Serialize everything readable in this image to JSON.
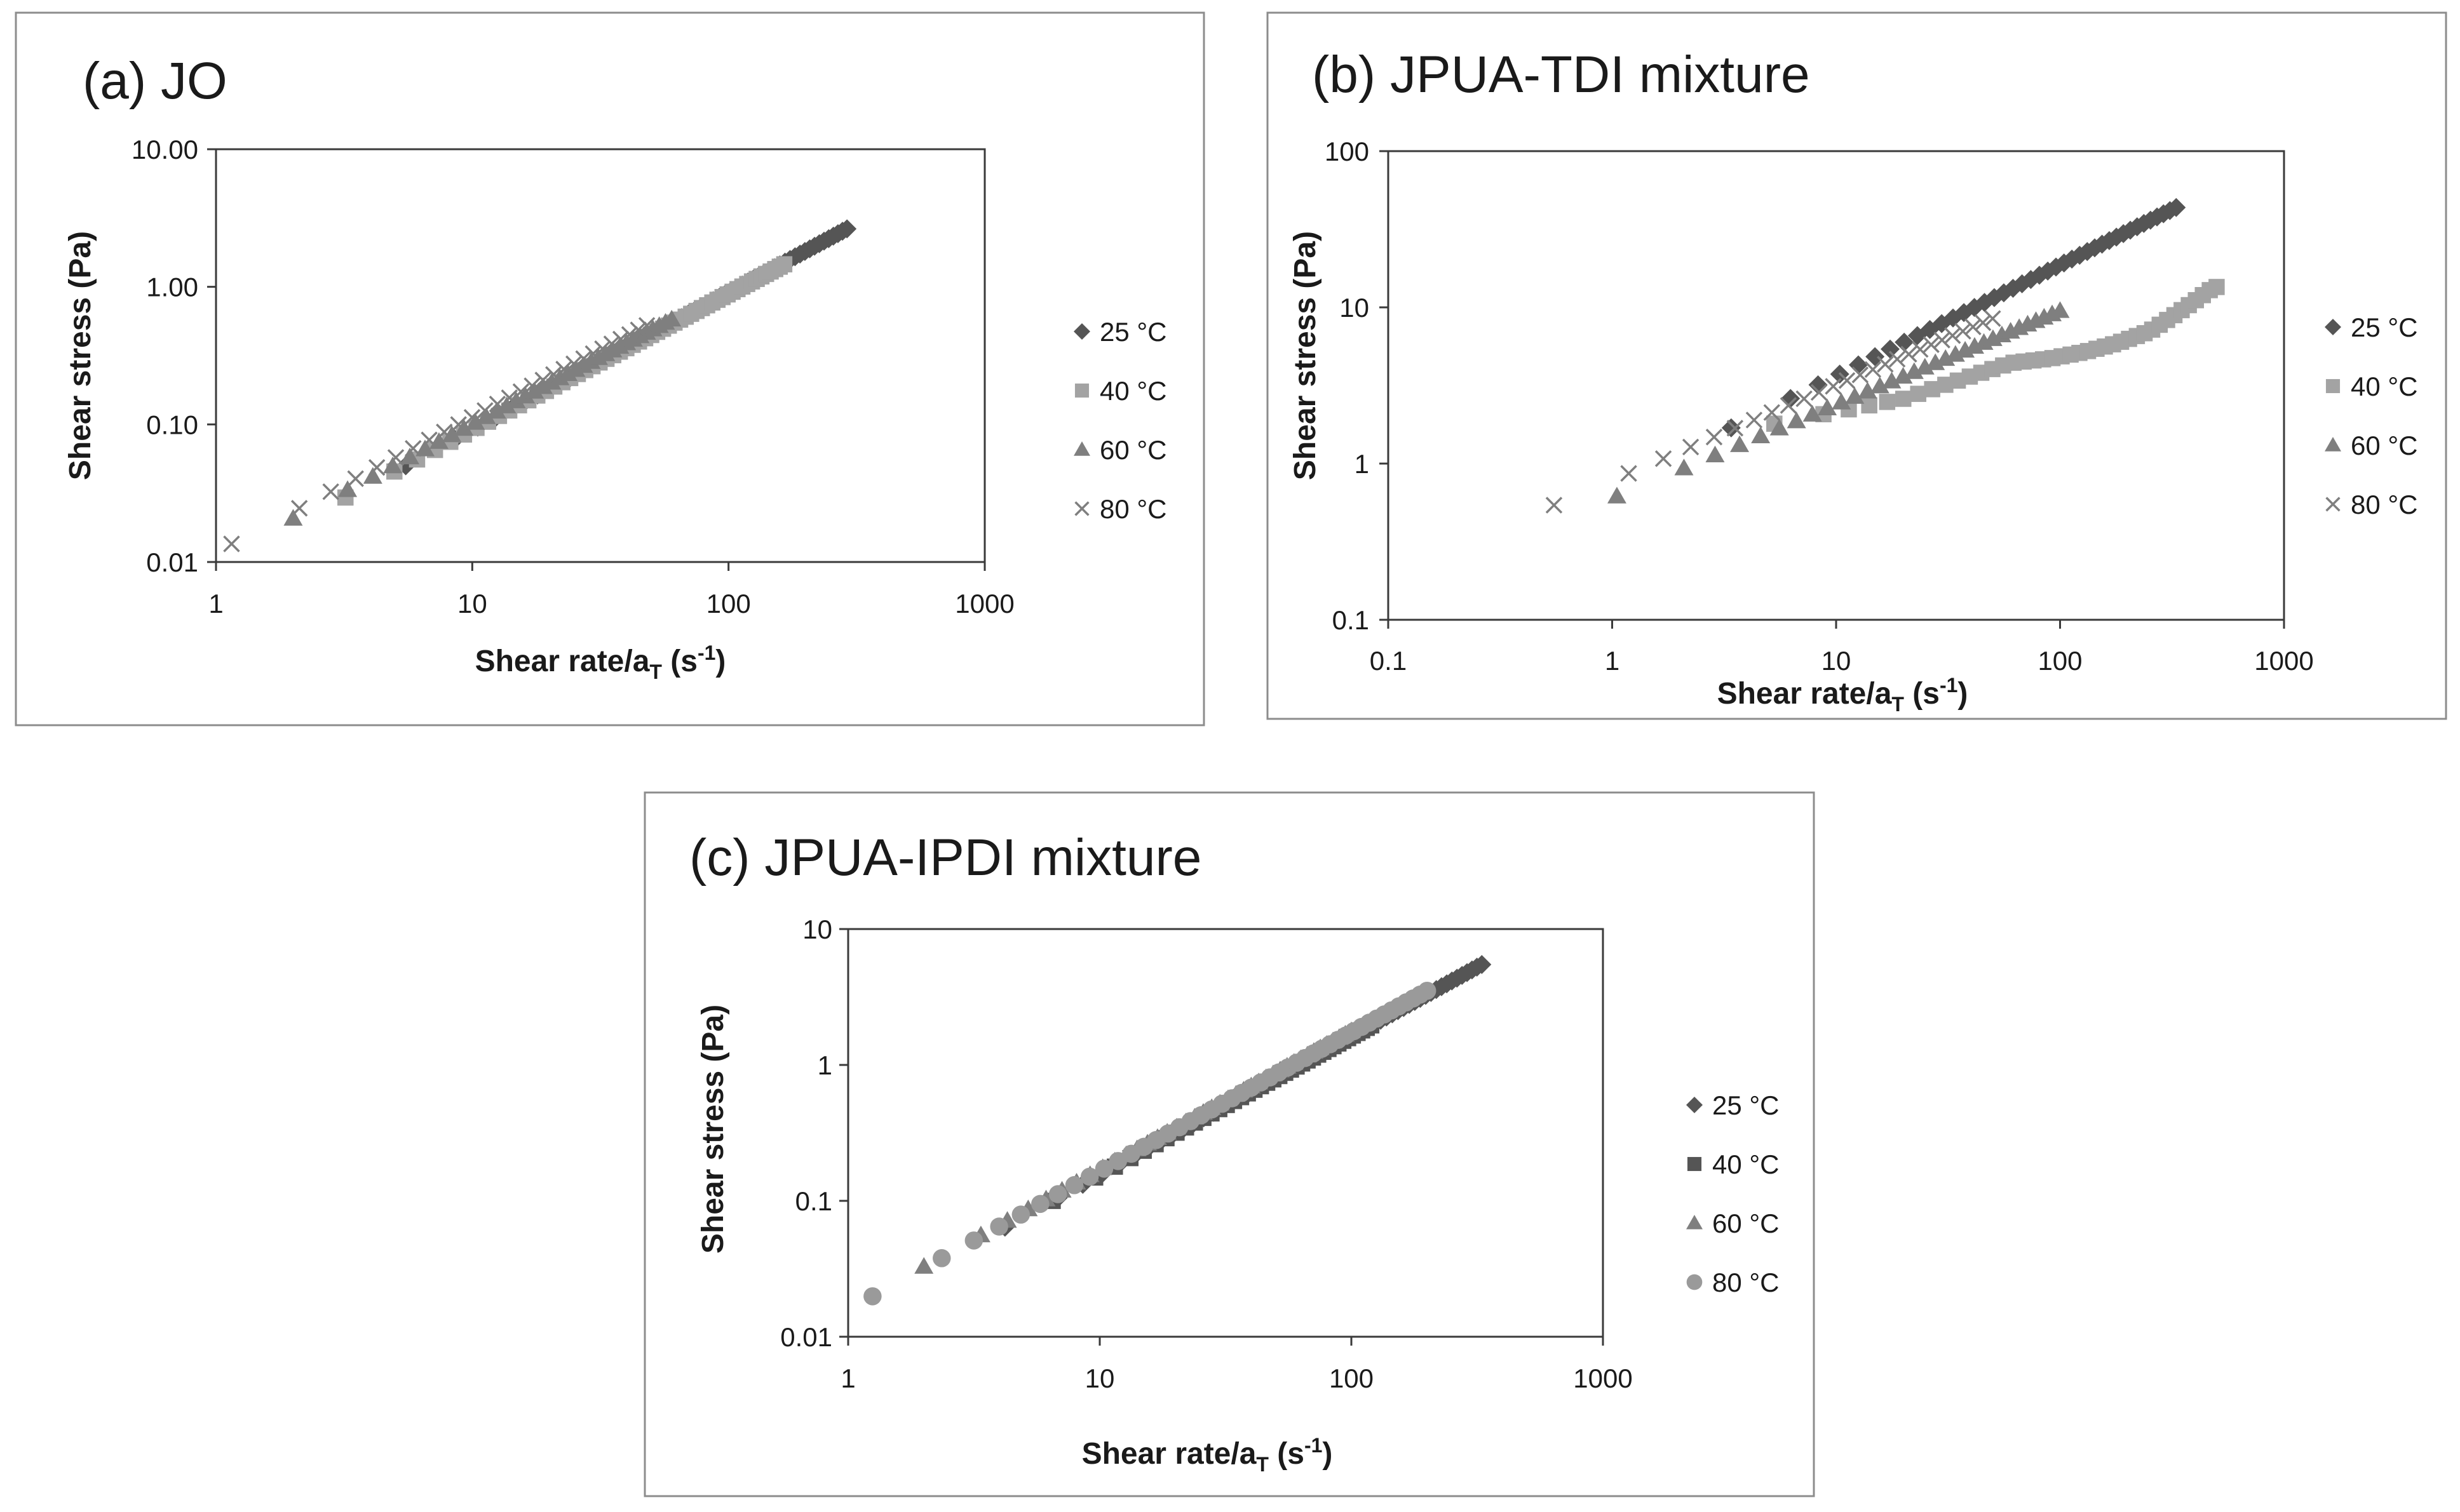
{
  "colors": {
    "s25": "#555555",
    "s40": "#a3a3a3",
    "s60": "#7f7f7f",
    "s80": "#7f7f7f",
    "c80": "#9a9a9a"
  },
  "chart_data": [
    {
      "type": "scatter",
      "title": "(a) JO",
      "xlabel": "Shear rate/a",
      "xlabel_sub": "T",
      "xlabel_unit": " (s",
      "xlabel_sup": "-1",
      "xlabel_close": ")",
      "ylabel": "Shear stress (Pa)",
      "xscale": "log",
      "yscale": "log",
      "xlim": [
        1,
        1000
      ],
      "ylim": [
        0.01,
        10
      ],
      "xticks": [
        "1",
        "10",
        "100",
        "1000"
      ],
      "yticks": [
        "0.01",
        "0.10",
        "1.00",
        "10.00"
      ],
      "series": [
        {
          "name": "25 °C",
          "marker": "diamond",
          "color_key": "s25",
          "range": [
            5.5,
            290
          ],
          "slope": 1.0,
          "k": 0.0091,
          "n": 55
        },
        {
          "name": "40 °C",
          "marker": "square",
          "color_key": "s40",
          "range": [
            3.2,
            165
          ],
          "slope": 0.99,
          "k": 0.0093,
          "n": 55
        },
        {
          "name": "60 °C",
          "marker": "triangle",
          "color_key": "s60",
          "range": [
            2.0,
            60
          ],
          "slope": 0.98,
          "k": 0.0105,
          "n": 35
        },
        {
          "name": "80 °C",
          "marker": "x",
          "color_key": "s80",
          "range": [
            1.15,
            48
          ],
          "slope": 0.98,
          "k": 0.0118,
          "n": 28
        }
      ]
    },
    {
      "type": "scatter",
      "title": "(b) JPUA-TDI mixture",
      "xlabel": "Shear rate/a",
      "xlabel_sub": "T",
      "xlabel_unit": " (s",
      "xlabel_sup": "-1",
      "xlabel_close": ")",
      "ylabel": "Shear stress (Pa)",
      "xscale": "log",
      "yscale": "log",
      "xlim": [
        0.1,
        1000
      ],
      "ylim": [
        0.1,
        100
      ],
      "xticks": [
        "0.1",
        "1",
        "10",
        "100",
        "1000"
      ],
      "yticks": [
        "0.1",
        "1",
        "10",
        "100"
      ],
      "series": [
        {
          "name": "25 °C",
          "marker": "diamond",
          "color_key": "s25",
          "range": [
            3.4,
            330
          ],
          "slope": 0.71,
          "k": 0.71,
          "n": 40
        },
        {
          "name": "40 °C",
          "marker": "square",
          "color_key": "s40",
          "points": [
            [
              5.3,
              1.8
            ],
            [
              20,
              2.6
            ],
            [
              35,
              3.4
            ],
            [
              60,
              4.4
            ],
            [
              90,
              4.7
            ],
            [
              130,
              5.2
            ],
            [
              180,
              5.9
            ],
            [
              250,
              7.0
            ],
            [
              320,
              8.8
            ],
            [
              400,
              11.0
            ],
            [
              470,
              13.0
            ],
            [
              500,
              13.5
            ]
          ],
          "n": 40
        },
        {
          "name": "60 °C",
          "marker": "triangle",
          "color_key": "s60",
          "range": [
            1.05,
            100
          ],
          "slope": 0.6,
          "k": 0.6,
          "n": 32
        },
        {
          "name": "80 °C",
          "marker": "x",
          "color_key": "s80",
          "range": [
            0.55,
            50
          ],
          "slope": 0.61,
          "k": 0.78,
          "n": 26
        }
      ]
    },
    {
      "type": "scatter",
      "title": "(c) JPUA-IPDI mixture",
      "xlabel": "Shear rate/a",
      "xlabel_sub": "T",
      "xlabel_unit": " (s",
      "xlabel_sup": "-1",
      "xlabel_close": ")",
      "ylabel": "Shear stress (Pa)",
      "xscale": "log",
      "yscale": "log",
      "xlim": [
        1,
        1000
      ],
      "ylim": [
        0.01,
        10
      ],
      "xticks": [
        "1",
        "10",
        "100",
        "1000"
      ],
      "yticks": [
        "0.01",
        "0.1",
        "1",
        "10"
      ],
      "series": [
        {
          "name": "25 °C",
          "marker": "diamond",
          "color_key": "s25",
          "range": [
            4.2,
            330
          ],
          "slope": 1.02,
          "k": 0.0148,
          "n": 55
        },
        {
          "name": "40 °C",
          "marker": "square",
          "color_key": "s25",
          "range": [
            6.5,
            120
          ],
          "slope": 1.02,
          "k": 0.0148,
          "n": 40
        },
        {
          "name": "60 °C",
          "marker": "triangle",
          "color_key": "s60",
          "range": [
            2.0,
            100
          ],
          "slope": 1.02,
          "k": 0.0162,
          "n": 40
        },
        {
          "name": "80 °C",
          "marker": "circle",
          "color_key": "c80",
          "range": [
            1.25,
            200
          ],
          "slope": 1.02,
          "k": 0.0158,
          "n": 45
        }
      ]
    }
  ]
}
